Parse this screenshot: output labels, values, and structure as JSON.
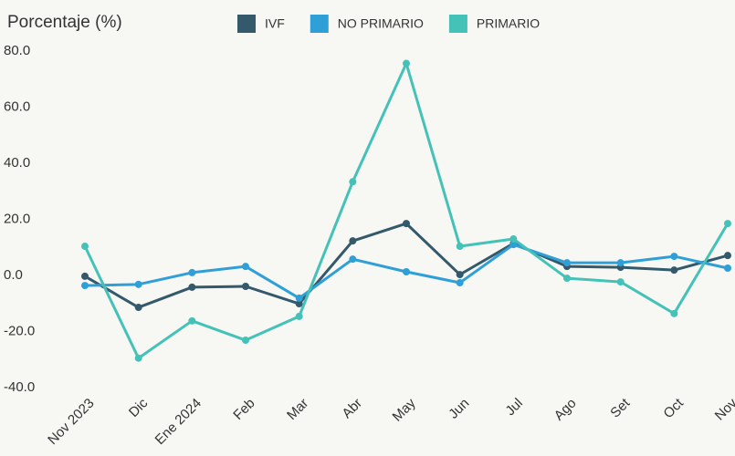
{
  "chart_data": {
    "type": "line",
    "y_axis_label": "Porcentaje (%)",
    "categories": [
      "Nov 2023",
      "Dic",
      "Ene 2024",
      "Feb",
      "Mar",
      "Abr",
      "May",
      "Jun",
      "Jul",
      "Ago",
      "Set",
      "Oct",
      "Nov"
    ],
    "series": [
      {
        "name": "IVF",
        "color": "#34596b",
        "values": [
          -0.3,
          -11.4,
          -4.2,
          -3.9,
          -10.1,
          12.3,
          18.5,
          0.3,
          11.4,
          3.2,
          2.9,
          1.9,
          7.1
        ]
      },
      {
        "name": "NO PRIMARIO",
        "color": "#2f9fd8",
        "values": [
          -3.6,
          -3.2,
          1.0,
          3.2,
          -8.1,
          5.8,
          1.3,
          -2.6,
          11.0,
          4.5,
          4.5,
          6.8,
          2.6
        ]
      },
      {
        "name": "PRIMARIO",
        "color": "#45c2b8",
        "values": [
          10.4,
          -29.5,
          -16.2,
          -23.1,
          -14.6,
          33.4,
          75.6,
          10.4,
          13.0,
          -1.0,
          -2.3,
          -13.6,
          18.5
        ]
      }
    ],
    "ylim": [
      -40,
      80
    ],
    "yticks": [
      {
        "value": -40,
        "label": "-40.0"
      },
      {
        "value": -20,
        "label": "-20.0"
      },
      {
        "value": 0,
        "label": "0.0"
      },
      {
        "value": 20,
        "label": "20.0"
      },
      {
        "value": 40,
        "label": "40.0"
      },
      {
        "value": 60,
        "label": "60.0"
      },
      {
        "value": 80,
        "label": "80.0"
      }
    ],
    "legend": "top"
  }
}
